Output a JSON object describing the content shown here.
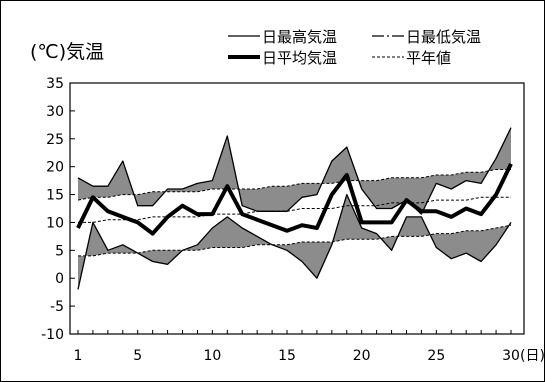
{
  "chart_data": {
    "type": "line",
    "ylabel": "(℃)気温",
    "xunit": "(日)",
    "ylim": [
      -10,
      35
    ],
    "xlim": [
      1,
      30
    ],
    "yticks": [
      -10,
      -5,
      0,
      5,
      10,
      15,
      20,
      25,
      30,
      35
    ],
    "xticks": [
      1,
      5,
      10,
      15,
      20,
      25,
      30
    ],
    "x": [
      1,
      2,
      3,
      4,
      5,
      6,
      7,
      8,
      9,
      10,
      11,
      12,
      13,
      14,
      15,
      16,
      17,
      18,
      19,
      20,
      21,
      22,
      23,
      24,
      25,
      26,
      27,
      28,
      29,
      30
    ],
    "series": [
      {
        "name": "日最高気温",
        "key": "max",
        "values": [
          18,
          16.5,
          16.5,
          21,
          13,
          13,
          16,
          16,
          17,
          17.5,
          25.5,
          13,
          12,
          12,
          12,
          14.5,
          15,
          21,
          23.5,
          16,
          12.5,
          12.5,
          14,
          11.5,
          17,
          16,
          17.5,
          17,
          21.5,
          27
        ]
      },
      {
        "name": "日最低気温",
        "key": "min",
        "values": [
          -2,
          10,
          5,
          6,
          4.5,
          3,
          2.5,
          5,
          6,
          9,
          11,
          9,
          7.5,
          6,
          5,
          3,
          0,
          6,
          15,
          9,
          8,
          5,
          11,
          11,
          5.5,
          3.5,
          4.5,
          3,
          6,
          10
        ]
      },
      {
        "name": "日平均気温",
        "key": "mean",
        "values": [
          9,
          14.5,
          12,
          11,
          10,
          8,
          11,
          13,
          11.5,
          11.5,
          16.5,
          11.5,
          10.5,
          9.5,
          8.5,
          9.5,
          9,
          15,
          18.5,
          10,
          10,
          10,
          14,
          12,
          12,
          11,
          12.5,
          11.5,
          15,
          20.5
        ]
      },
      {
        "name": "平年値",
        "key": "normal_max",
        "values": [
          14,
          14.5,
          14.5,
          15,
          15,
          15.5,
          15.5,
          15.5,
          15.5,
          16,
          16,
          16,
          16,
          16.5,
          16.5,
          17,
          17,
          17,
          17.5,
          17.5,
          17.5,
          18,
          18,
          18,
          18.5,
          18.5,
          19,
          19,
          19.5,
          19.5
        ]
      },
      {
        "name": "平年値",
        "key": "normal_mean",
        "values": [
          10,
          10,
          10.5,
          10.5,
          10.5,
          11,
          11,
          11,
          11,
          11.5,
          11.5,
          11.5,
          12,
          12,
          12,
          12.5,
          12.5,
          12.5,
          13,
          13,
          13,
          13.5,
          13.5,
          13.5,
          14,
          14,
          14,
          14.5,
          14.5,
          14.5
        ]
      },
      {
        "name": "平年値",
        "key": "normal_min",
        "values": [
          4,
          4,
          4.5,
          4.5,
          4.5,
          5,
          5,
          5,
          5,
          5.5,
          5.5,
          5.5,
          6,
          6,
          6,
          6.5,
          6.5,
          6.5,
          7,
          7,
          7,
          7.5,
          7.5,
          7.5,
          8,
          8,
          8.5,
          8.5,
          9,
          9.5
        ]
      }
    ],
    "legend": [
      {
        "label": "日最高気温",
        "style": "thin-solid"
      },
      {
        "label": "日最低気温",
        "style": "dash-dot"
      },
      {
        "label": "日平均気温",
        "style": "thick-solid"
      },
      {
        "label": "平年値",
        "style": "dashed"
      }
    ],
    "legend_position": "top-right",
    "fill_color": "#8c8c8c",
    "line_color": "#000000",
    "grid": false
  }
}
